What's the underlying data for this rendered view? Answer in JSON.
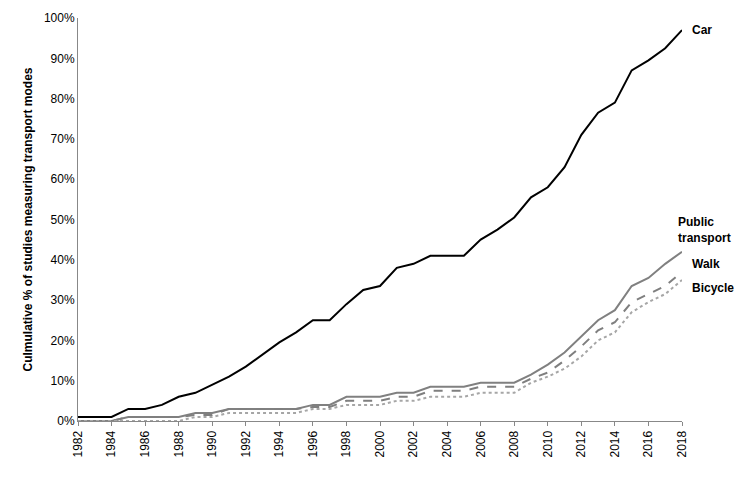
{
  "chart_data": {
    "type": "line",
    "y_label": "Culmulative % of studies measuring transport modes",
    "x": [
      1982,
      1983,
      1984,
      1985,
      1986,
      1987,
      1988,
      1989,
      1990,
      1991,
      1992,
      1993,
      1994,
      1995,
      1996,
      1997,
      1998,
      1999,
      2000,
      2001,
      2002,
      2003,
      2004,
      2005,
      2006,
      2007,
      2008,
      2009,
      2010,
      2011,
      2012,
      2013,
      2014,
      2015,
      2016,
      2017,
      2018
    ],
    "series": [
      {
        "name": "Car",
        "color": "#000000",
        "line_style": "solid",
        "values": [
          1,
          1,
          1,
          3,
          3,
          4,
          6,
          7,
          9,
          11,
          13.5,
          16.5,
          19.5,
          22,
          25,
          25,
          29,
          32.5,
          33.5,
          38,
          39,
          41,
          41,
          41,
          45,
          47.5,
          50.5,
          55.5,
          58,
          63,
          71,
          76.5,
          79,
          87,
          89.5,
          92.5,
          97
        ]
      },
      {
        "name": "Public transport",
        "color": "#808080",
        "line_style": "solid",
        "values": [
          0,
          0,
          0,
          1,
          1,
          1,
          1,
          2,
          2,
          3,
          3,
          3,
          3,
          3,
          4,
          4,
          6,
          6,
          6,
          7,
          7,
          8.5,
          8.5,
          8.5,
          9.5,
          9.5,
          9.5,
          11.5,
          14,
          17,
          21,
          25,
          27.5,
          33.5,
          35.5,
          39,
          42
        ]
      },
      {
        "name": "Walk",
        "color": "#7f7f7f",
        "line_style": "dash",
        "values": [
          0,
          0,
          0,
          1,
          1,
          1,
          1,
          1.5,
          1.5,
          3,
          3,
          3,
          3,
          3,
          3.5,
          3.5,
          5,
          5,
          5,
          6,
          6,
          7.5,
          7.5,
          7.5,
          8.5,
          8.5,
          8.5,
          10.5,
          12,
          15,
          18.5,
          22.5,
          24.5,
          29.5,
          31.5,
          33.5,
          37
        ]
      },
      {
        "name": "Bicycle",
        "color": "#a6a6a6",
        "line_style": "dot",
        "values": [
          0,
          0,
          0,
          0,
          0,
          0,
          0,
          1,
          1,
          2,
          2,
          2,
          2,
          2,
          3,
          3,
          4,
          4,
          4,
          5,
          5,
          6,
          6,
          6,
          7,
          7,
          7,
          9.5,
          11,
          13,
          16,
          20,
          22,
          27,
          29.5,
          31.5,
          35
        ]
      }
    ],
    "xlim": [
      1982,
      2018
    ],
    "xticks": [
      1982,
      1984,
      1986,
      1988,
      1990,
      1992,
      1994,
      1996,
      1998,
      2000,
      2002,
      2004,
      2006,
      2008,
      2010,
      2012,
      2014,
      2016,
      2018
    ],
    "ylim": [
      0,
      100
    ],
    "yticks": [
      {
        "value": 0,
        "label": "0%"
      },
      {
        "value": 10,
        "label": "10%"
      },
      {
        "value": 20,
        "label": "20%"
      },
      {
        "value": 30,
        "label": "30%"
      },
      {
        "value": 40,
        "label": "40%"
      },
      {
        "value": 50,
        "label": "50%"
      },
      {
        "value": 60,
        "label": "60%"
      },
      {
        "value": 70,
        "label": "70%"
      },
      {
        "value": 80,
        "label": "80%"
      },
      {
        "value": 90,
        "label": "90%"
      },
      {
        "value": 100,
        "label": "100%"
      }
    ],
    "grid": false
  }
}
